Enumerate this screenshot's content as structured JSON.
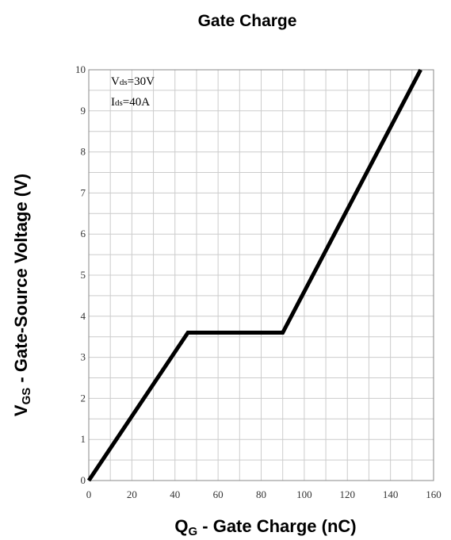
{
  "chart_data": {
    "type": "line",
    "title": "Gate Charge",
    "xlabel": {
      "main": "Q",
      "sub": "G",
      "rest": " - Gate Charge (nC)"
    },
    "ylabel": {
      "main": "V",
      "sub": "GS",
      "rest": " - Gate-Source Voltage (V)"
    },
    "xlim": [
      0,
      160
    ],
    "ylim": [
      0,
      10
    ],
    "x_ticks": [
      "0",
      "20",
      "40",
      "60",
      "80",
      "100",
      "120",
      "140",
      "160"
    ],
    "y_ticks": [
      "0",
      "1",
      "2",
      "3",
      "4",
      "5",
      "6",
      "7",
      "8",
      "9",
      "10"
    ],
    "grid": true,
    "annotations": [
      {
        "main": "V",
        "sub": "ds",
        "rest": "=30V"
      },
      {
        "main": "I",
        "sub": "ds",
        "rest": "=40A"
      }
    ],
    "series": [
      {
        "x": [
          0,
          46,
          90,
          154
        ],
        "y": [
          0,
          3.6,
          3.6,
          10
        ]
      }
    ],
    "colors": {
      "line": "#000000",
      "grid": "#cccccc",
      "frame": "#888888"
    }
  }
}
